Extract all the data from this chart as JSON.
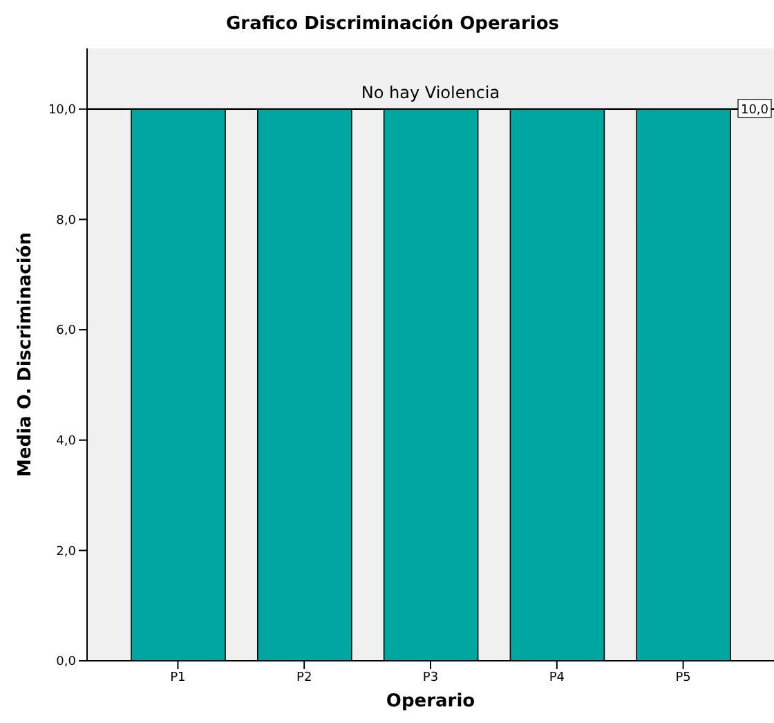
{
  "chart_data": {
    "type": "bar",
    "title": "Grafico Discriminación Operarios",
    "xlabel": "Operario",
    "ylabel": "Media O. Discriminación",
    "categories": [
      "P1",
      "P2",
      "P3",
      "P4",
      "P5"
    ],
    "values": [
      10,
      10,
      10,
      10,
      10
    ],
    "color": "#00a6a0",
    "ylim": [
      0,
      11.1
    ],
    "yticks": [
      {
        "value": 0,
        "label": "0,0"
      },
      {
        "value": 2,
        "label": "2,0"
      },
      {
        "value": 4,
        "label": "4,0"
      },
      {
        "value": 6,
        "label": "6,0"
      },
      {
        "value": 8,
        "label": "8,0"
      },
      {
        "value": 10,
        "label": "10,0"
      }
    ],
    "ref_lines": [
      {
        "axis": "y",
        "value": 10,
        "label": "No hay Violencia",
        "color": "#000000"
      }
    ],
    "annotations": [
      {
        "text": "10,0",
        "y": 10
      }
    ],
    "grid": false,
    "legend": false
  }
}
